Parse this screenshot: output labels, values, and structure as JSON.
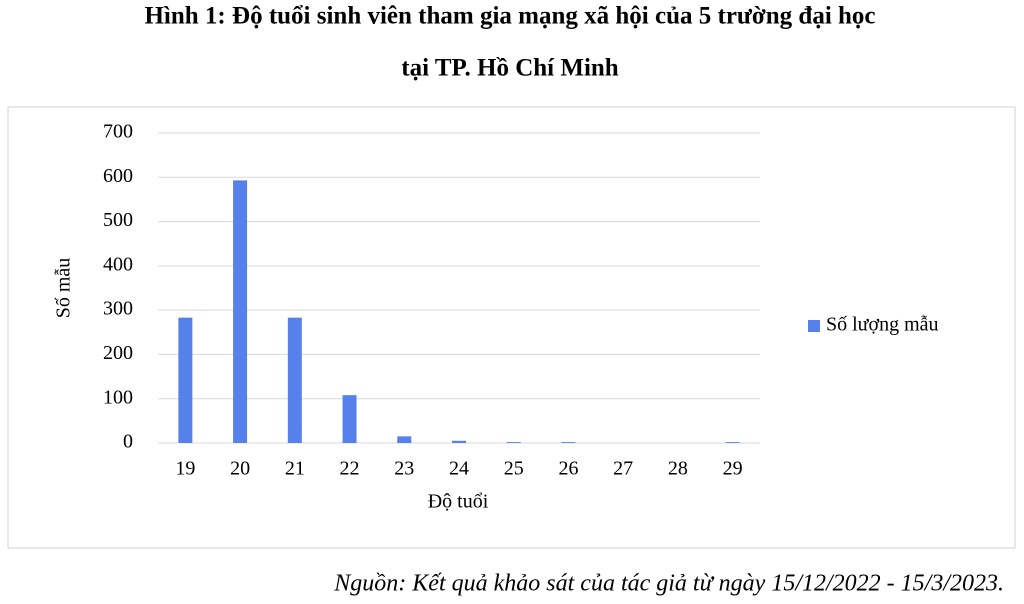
{
  "chart_data": {
    "type": "bar",
    "title": [
      "Hình 1: Độ tuổi sinh viên tham gia mạng xã hội của 5 trường đại học",
      "tại TP. Hồ Chí Minh"
    ],
    "x_label": "Độ tuổi",
    "y_label": "Số mẫu",
    "categories": [
      "19",
      "20",
      "21",
      "22",
      "23",
      "24",
      "25",
      "26",
      "27",
      "28",
      "29"
    ],
    "series": [
      {
        "name": "Số lượng mẫu",
        "color": "#5680ea",
        "values": [
          283,
          593,
          283,
          108,
          15,
          5,
          2,
          2,
          0,
          0,
          2
        ]
      }
    ],
    "ylim": [
      0,
      700
    ],
    "yticks": [
      0,
      100,
      200,
      300,
      400,
      500,
      600,
      700
    ],
    "grid": true,
    "legend": "right",
    "source": "Nguồn: Kết quả khảo sát của tác giả từ ngày 15/12/2022 - 15/3/2023."
  }
}
